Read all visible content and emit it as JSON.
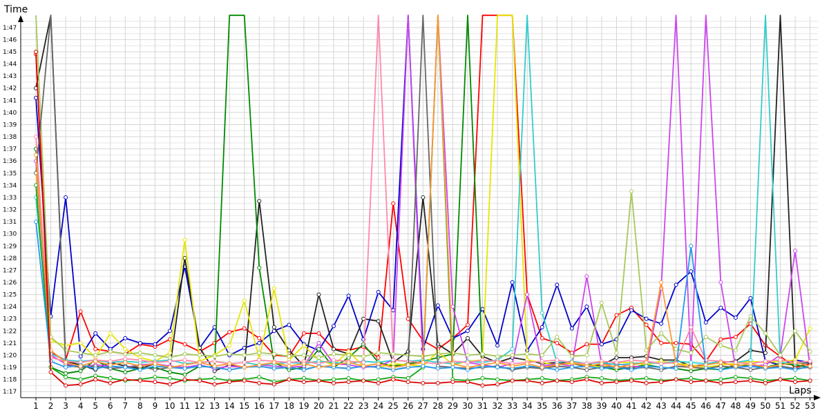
{
  "chart_data": {
    "type": "line",
    "xlabel": "Laps",
    "ylabel": "Time",
    "x_categories": [
      "1",
      "2",
      "3",
      "4",
      "5",
      "6",
      "7",
      "8",
      "9",
      "10",
      "11",
      "12",
      "13",
      "14",
      "15",
      "16",
      "17",
      "18",
      "19",
      "20",
      "21",
      "22",
      "23",
      "24",
      "25",
      "26",
      "27",
      "28",
      "29",
      "30",
      "31",
      "32",
      "33",
      "34",
      "35",
      "36",
      "37",
      "38",
      "39",
      "40",
      "41",
      "42",
      "43",
      "44",
      "45",
      "46",
      "47",
      "48",
      "49",
      "50",
      "51",
      "52",
      "53"
    ],
    "y_tick_labels": [
      "1:17",
      "1:18",
      "1:19",
      "1:20",
      "1:21",
      "1:22",
      "1:23",
      "1:24",
      "1:25",
      "1:26",
      "1:27",
      "1:28",
      "1:29",
      "1:30",
      "1:31",
      "1:32",
      "1:33",
      "1:34",
      "1:35",
      "1:36",
      "1:37",
      "1:38",
      "1:39",
      "1:40",
      "1:41",
      "1:42",
      "1:43",
      "1:44",
      "1:45",
      "1:46",
      "1:47"
    ],
    "ylim_seconds": [
      76.5,
      107.9
    ],
    "grid": true,
    "legend": "none",
    "series": [
      {
        "color": "#ff0000",
        "values": [
          104.8,
          80.2,
          79.6,
          83.6,
          80.5,
          80.3,
          80.1,
          80.9,
          80.7,
          81.3,
          80.9,
          80.3,
          81.0,
          81.9,
          82.2,
          81.4,
          80.0,
          79.9,
          81.8,
          81.8,
          80.5,
          80.4,
          80.7,
          79.8,
          92.5,
          83.0,
          81.2,
          80.5,
          81.4,
          82.5,
          108.0,
          108.0,
          108.0,
          85.0,
          81.4,
          81.0,
          80.2,
          80.9,
          80.9,
          83.3,
          83.9,
          82.5,
          81.0,
          81.0,
          80.9,
          79.5,
          81.3,
          81.5,
          82.6,
          80.8,
          79.9,
          79.0,
          79.3
        ]
      },
      {
        "color": "#0000cc",
        "values": [
          101.2,
          83.2,
          93.0,
          79.9,
          81.8,
          80.5,
          81.4,
          81.0,
          80.9,
          82.0,
          87.3,
          80.6,
          82.3,
          80.0,
          80.6,
          81.0,
          82.0,
          82.5,
          80.9,
          80.4,
          82.4,
          84.9,
          81.3,
          85.2,
          83.7,
          108.0,
          80.5,
          84.1,
          81.4,
          82.0,
          83.8,
          80.8,
          86.0,
          80.4,
          82.3,
          85.8,
          82.2,
          84.0,
          80.9,
          81.3,
          83.7,
          83.0,
          82.6,
          85.8,
          86.9,
          82.7,
          83.9,
          83.1,
          84.7,
          79.5,
          79.2,
          79.6,
          79.4
        ]
      },
      {
        "color": "#222222",
        "values": [
          102.0,
          108.0,
          79.5,
          79.2,
          78.8,
          79.4,
          79.1,
          78.9,
          79.3,
          79.0,
          88.0,
          80.6,
          78.7,
          79.2,
          79.0,
          92.7,
          82.3,
          80.4,
          79.1,
          85.0,
          80.5,
          80.1,
          83.0,
          82.8,
          79.4,
          80.3,
          93.0,
          80.9,
          80.1,
          81.4,
          79.9,
          79.4,
          79.8,
          79.6,
          79.3,
          79.4,
          79.3,
          79.1,
          79.2,
          79.8,
          79.8,
          79.9,
          79.6,
          79.6,
          79.1,
          79.2,
          79.4,
          79.5,
          80.4,
          80.2,
          108.0,
          79.3,
          79.4
        ]
      },
      {
        "color": "#008800",
        "values": [
          97.0,
          79.0,
          78.5,
          78.7,
          79.6,
          78.9,
          78.6,
          78.9,
          79.0,
          78.6,
          78.4,
          79.1,
          79.0,
          108.0,
          108.0,
          87.2,
          79.4,
          78.8,
          79.0,
          80.5,
          79.0,
          79.8,
          80.9,
          79.4,
          79.1,
          79.3,
          79.5,
          79.8,
          80.1,
          108.0,
          79.2,
          79.0,
          78.9,
          79.1,
          79.0,
          79.2,
          79.4,
          79.3,
          79.0,
          78.8,
          79.0,
          79.2,
          79.0,
          78.9,
          78.7,
          78.9,
          78.8,
          79.2,
          79.1,
          79.0,
          79.3,
          79.2,
          79.0
        ]
      },
      {
        "color": "#e6e600",
        "values": [
          95.0,
          81.2,
          80.8,
          81.0,
          79.8,
          81.8,
          80.5,
          79.8,
          79.5,
          80.2,
          89.5,
          79.5,
          80.0,
          80.8,
          84.5,
          79.7,
          85.5,
          79.6,
          80.8,
          79.6,
          79.2,
          80.3,
          79.1,
          79.0,
          79.3,
          79.2,
          79.1,
          80.3,
          79.2,
          79.5,
          79.6,
          108.0,
          108.0,
          79.6,
          79.4,
          79.2,
          79.3,
          79.2,
          79.0,
          79.4,
          79.4,
          79.2,
          79.5,
          79.3,
          79.2,
          79.0,
          79.2,
          79.3,
          79.5,
          79.4,
          79.5,
          79.6,
          82.2
        ]
      },
      {
        "color": "#cc44ee",
        "values": [
          96.0,
          80.0,
          79.3,
          79.0,
          79.2,
          79.1,
          79.0,
          79.2,
          79.3,
          79.1,
          79.0,
          79.2,
          78.9,
          79.1,
          79.0,
          79.2,
          79.1,
          79.0,
          79.1,
          81.0,
          79.3,
          79.2,
          79.0,
          79.1,
          79.6,
          108.0,
          79.4,
          108.0,
          84.0,
          79.4,
          79.2,
          79.0,
          79.3,
          85.0,
          79.1,
          79.3,
          79.1,
          86.5,
          79.2,
          79.3,
          79.1,
          79.0,
          85.5,
          108.0,
          79.2,
          108.0,
          86.0,
          79.0,
          79.1,
          79.2,
          80.0,
          88.6,
          79.0
        ]
      },
      {
        "color": "#33cccc",
        "values": [
          93.0,
          80.1,
          79.6,
          79.5,
          79.6,
          79.4,
          79.5,
          79.4,
          79.5,
          79.6,
          79.3,
          79.4,
          79.5,
          79.3,
          79.4,
          79.2,
          79.3,
          79.4,
          79.3,
          79.5,
          79.4,
          79.3,
          79.5,
          79.4,
          79.6,
          79.5,
          79.6,
          79.4,
          79.3,
          79.5,
          79.4,
          79.6,
          80.5,
          108.0,
          83.5,
          79.4,
          79.5,
          79.3,
          79.4,
          79.2,
          79.3,
          79.4,
          79.3,
          79.5,
          79.4,
          79.3,
          79.5,
          79.4,
          79.6,
          108.0,
          79.4,
          79.3,
          79.5
        ]
      },
      {
        "color": "#ff88aa",
        "values": [
          98.0,
          79.8,
          79.5,
          79.4,
          79.6,
          79.5,
          79.7,
          79.6,
          79.4,
          79.5,
          79.6,
          79.4,
          79.5,
          79.3,
          79.4,
          79.6,
          79.5,
          79.4,
          79.5,
          79.3,
          79.6,
          79.5,
          79.4,
          108.0,
          79.6,
          79.5,
          79.4,
          79.3,
          79.5,
          79.4,
          79.6,
          79.5,
          79.3,
          79.4,
          79.5,
          79.6,
          79.4,
          79.3,
          79.5,
          79.4,
          79.6,
          79.5,
          79.3,
          79.4,
          82.3,
          79.6,
          79.5,
          79.4,
          79.3,
          79.5,
          79.6,
          79.4,
          79.5
        ]
      },
      {
        "color": "#a6c85a",
        "values": [
          108.0,
          81.5,
          80.4,
          80.2,
          80.0,
          80.3,
          80.1,
          80.2,
          80.0,
          79.8,
          80.1,
          80.0,
          79.9,
          80.1,
          80.0,
          80.2,
          80.1,
          79.9,
          80.0,
          79.8,
          80.1,
          80.0,
          79.9,
          80.2,
          80.1,
          80.0,
          79.9,
          80.1,
          80.2,
          80.0,
          80.1,
          79.9,
          80.0,
          80.1,
          80.0,
          81.5,
          79.9,
          80.0,
          84.3,
          80.2,
          93.5,
          80.4,
          81.8,
          80.5,
          80.2,
          81.5,
          80.8,
          80.4,
          83.2,
          81.8,
          80.0,
          82.0,
          80.3
        ]
      },
      {
        "color": "#666666",
        "values": [
          95.0,
          108.0,
          79.2,
          79.0,
          79.1,
          78.9,
          79.0,
          79.1,
          78.8,
          79.0,
          78.9,
          79.1,
          79.0,
          78.8,
          79.0,
          79.1,
          78.9,
          79.0,
          78.8,
          79.1,
          79.0,
          78.9,
          79.1,
          79.0,
          78.8,
          79.0,
          108.0,
          79.1,
          79.0,
          78.9,
          79.0,
          79.1,
          78.8,
          79.0,
          78.9,
          79.1,
          79.0,
          78.8,
          79.0,
          79.1,
          78.9,
          79.0,
          78.8,
          79.1,
          79.0,
          78.9,
          79.1,
          79.0,
          78.8,
          79.0,
          79.1,
          78.9,
          79.0
        ]
      },
      {
        "color": "#11aa11",
        "values": [
          94.0,
          79.0,
          78.2,
          78.0,
          78.3,
          78.1,
          77.9,
          78.0,
          78.2,
          78.1,
          77.9,
          78.0,
          78.1,
          77.9,
          78.0,
          78.2,
          77.8,
          78.0,
          78.1,
          77.9,
          78.0,
          78.1,
          77.9,
          78.0,
          78.2,
          78.1,
          79.0,
          108.0,
          78.0,
          77.9,
          78.1,
          78.0,
          77.9,
          78.0,
          78.1,
          77.9,
          78.0,
          78.2,
          78.1,
          77.9,
          78.0,
          78.1,
          77.9,
          78.0,
          78.1,
          77.9,
          78.0,
          78.2,
          78.1,
          77.9,
          78.0,
          78.1,
          77.9
        ]
      },
      {
        "color": "#2299ee",
        "values": [
          91.0,
          79.5,
          79.0,
          79.2,
          78.9,
          79.1,
          79.0,
          78.8,
          79.1,
          79.0,
          78.9,
          79.1,
          79.0,
          78.8,
          79.0,
          79.1,
          78.9,
          79.0,
          78.8,
          79.1,
          79.0,
          78.9,
          79.1,
          79.0,
          78.8,
          79.0,
          79.1,
          78.9,
          79.0,
          78.8,
          79.1,
          79.0,
          78.9,
          79.1,
          79.0,
          78.8,
          79.0,
          79.1,
          78.9,
          79.0,
          78.8,
          79.1,
          79.0,
          78.9,
          89.0,
          79.0,
          78.8,
          79.0,
          79.1,
          78.9,
          79.0,
          78.8,
          79.1
        ]
      },
      {
        "color": "#ff9933",
        "values": [
          96.5,
          80.4,
          79.4,
          79.1,
          79.5,
          79.2,
          79.4,
          79.1,
          79.3,
          79.0,
          79.2,
          79.4,
          79.1,
          79.3,
          79.0,
          79.2,
          79.4,
          79.1,
          79.3,
          79.0,
          79.2,
          79.4,
          79.1,
          79.3,
          79.0,
          79.2,
          79.4,
          108.0,
          79.3,
          79.0,
          79.2,
          79.4,
          79.1,
          79.3,
          79.0,
          79.2,
          79.4,
          79.1,
          79.3,
          79.0,
          79.2,
          79.4,
          86.0,
          79.3,
          79.0,
          79.2,
          79.4,
          79.1,
          79.3,
          79.0,
          79.2,
          79.4,
          79.1
        ]
      },
      {
        "color": "#dd0000",
        "values": [
          105.0,
          78.6,
          77.5,
          77.6,
          78.0,
          77.7,
          78.0,
          77.9,
          77.8,
          77.6,
          78.0,
          77.9,
          77.6,
          77.8,
          77.9,
          77.7,
          77.6,
          78.0,
          77.8,
          77.9,
          77.7,
          77.8,
          77.9,
          77.7,
          78.0,
          77.8,
          77.7,
          77.7,
          77.8,
          77.8,
          77.5,
          77.6,
          77.9,
          77.9,
          77.7,
          77.9,
          77.8,
          78.0,
          77.7,
          77.8,
          77.9,
          77.7,
          77.8,
          78.0,
          77.8,
          77.9,
          77.7,
          77.8,
          77.9,
          77.7,
          78.0,
          77.8,
          77.9
        ]
      }
    ]
  }
}
